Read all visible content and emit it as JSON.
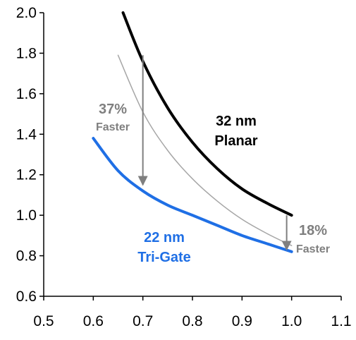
{
  "chart_data": {
    "type": "line",
    "title": "",
    "xlabel": "",
    "ylabel": "",
    "xlim": [
      0.5,
      1.1
    ],
    "ylim": [
      0.6,
      2.0
    ],
    "xticks": [
      "0.5",
      "0.6",
      "0.7",
      "0.8",
      "0.9",
      "1.0",
      "1.1"
    ],
    "yticks": [
      "0.6",
      "0.8",
      "1.0",
      "1.2",
      "1.4",
      "1.6",
      "1.8",
      "2.0"
    ],
    "grid": false,
    "series": [
      {
        "name": "32 nm Planar",
        "color": "#000000",
        "x": [
          0.66,
          0.7,
          0.75,
          0.8,
          0.85,
          0.9,
          0.95,
          1.0
        ],
        "y": [
          2.0,
          1.76,
          1.53,
          1.36,
          1.23,
          1.13,
          1.06,
          1.0
        ]
      },
      {
        "name": "",
        "color": "#a6a6a6",
        "x": [
          0.65,
          0.7,
          0.75,
          0.8,
          0.85,
          0.9,
          0.95,
          1.0
        ],
        "y": [
          1.79,
          1.51,
          1.32,
          1.18,
          1.07,
          0.98,
          0.91,
          0.85
        ]
      },
      {
        "name": "22 nm Tri-Gate",
        "color": "#1f6fe5",
        "x": [
          0.6,
          0.65,
          0.7,
          0.75,
          0.8,
          0.85,
          0.9,
          0.95,
          1.0
        ],
        "y": [
          1.38,
          1.22,
          1.12,
          1.05,
          1.0,
          0.95,
          0.9,
          0.86,
          0.82
        ]
      }
    ],
    "annotations": [
      {
        "text_top": "37%",
        "text_bottom": "Faster",
        "color": "#7f7f7f",
        "arrow_x": 0.7,
        "arrow_from": 1.79,
        "arrow_to": 1.15
      },
      {
        "text_top": "18%",
        "text_bottom": "Faster",
        "color": "#7f7f7f",
        "arrow_x": 0.99,
        "arrow_from": 1.0,
        "arrow_to": 0.83
      }
    ],
    "series_labels": [
      {
        "lines": [
          "32 nm",
          "Planar"
        ],
        "color": "#000000"
      },
      {
        "lines": [
          "22 nm",
          "Tri-Gate"
        ],
        "color": "#1f6fe5"
      }
    ]
  }
}
